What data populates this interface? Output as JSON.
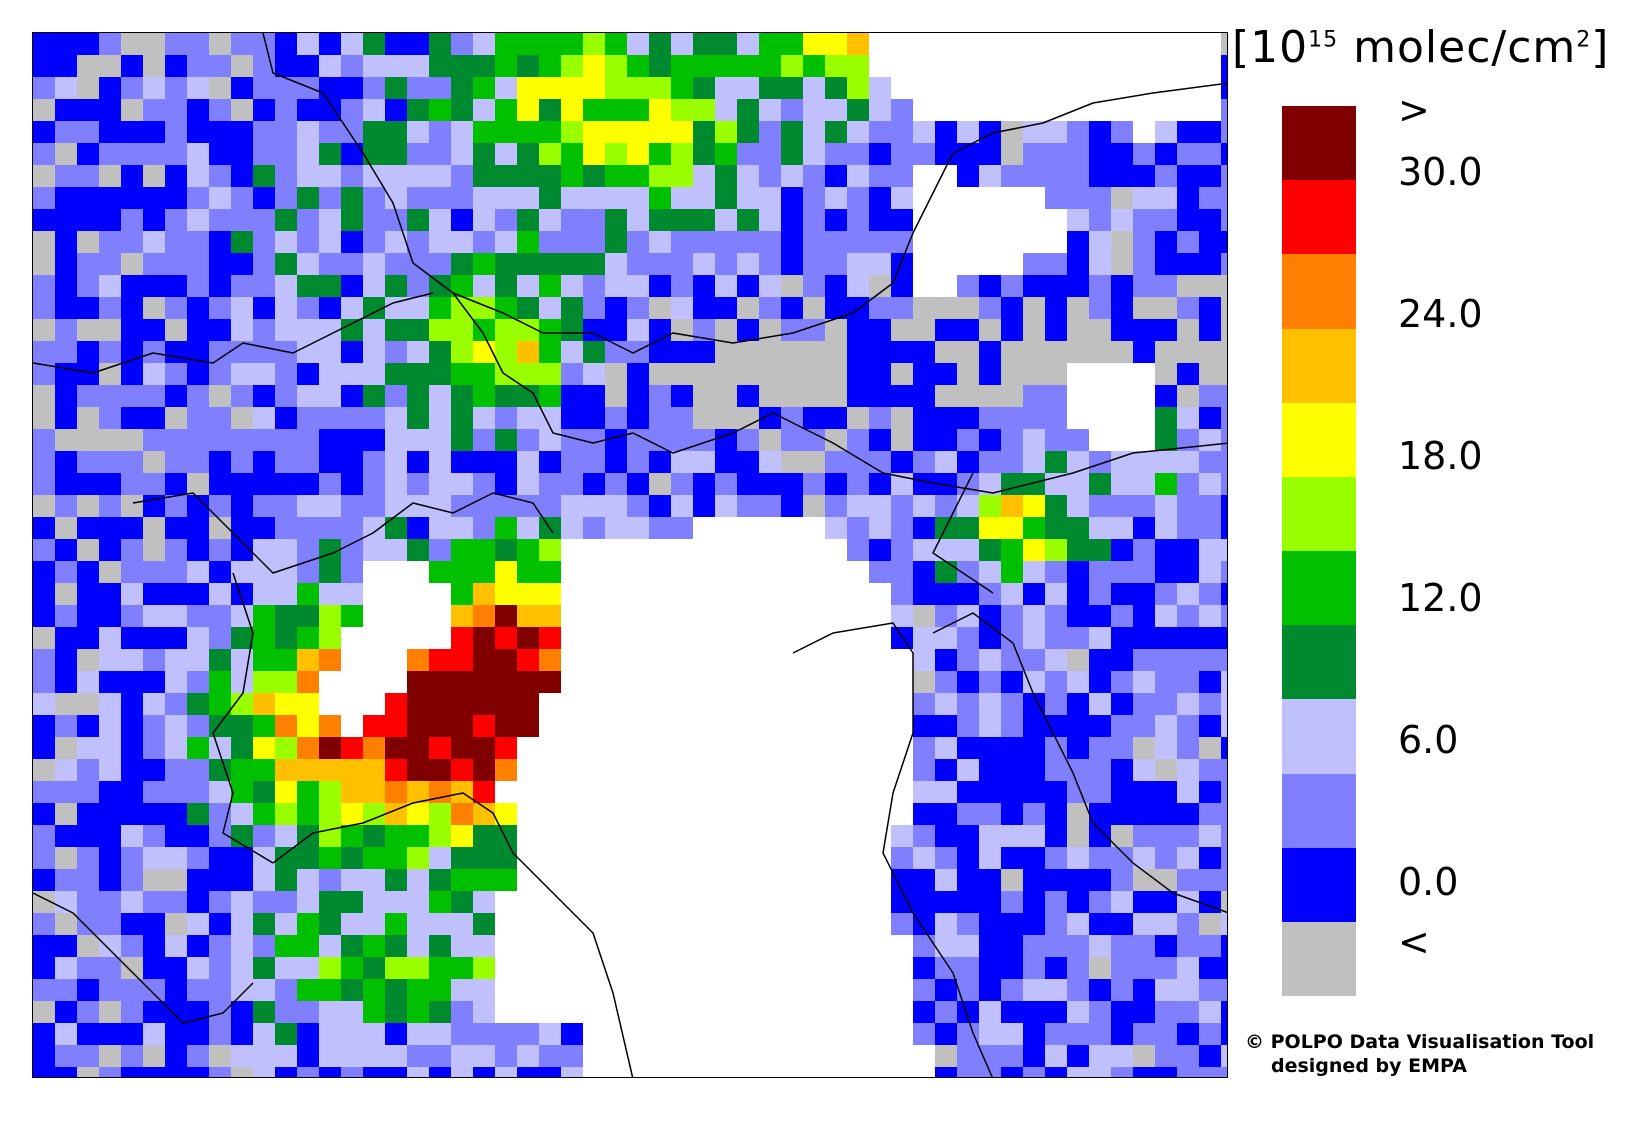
{
  "units": {
    "prefix": "[10",
    "exponent": "15",
    "suffix": " molec/cm",
    "suffix_exp": "2",
    "close": "]"
  },
  "legend": {
    "top_label": ">",
    "bottom_label": "<",
    "ticks": [
      "30.0",
      "24.0",
      "18.0",
      "12.0",
      "6.0",
      "0.0"
    ],
    "colors": [
      "#800000",
      "#ff0000",
      "#ff8000",
      "#ffc000",
      "#ffff00",
      "#99ff00",
      "#00c000",
      "#008a30",
      "#c0c0ff",
      "#8080ff",
      "#0000ff",
      "#c0c0c0"
    ],
    "missing_color": "#ffffff"
  },
  "credit": {
    "line1": "© POLPO Data Visualisation Tool",
    "line2": "designed by EMPA"
  }
}
